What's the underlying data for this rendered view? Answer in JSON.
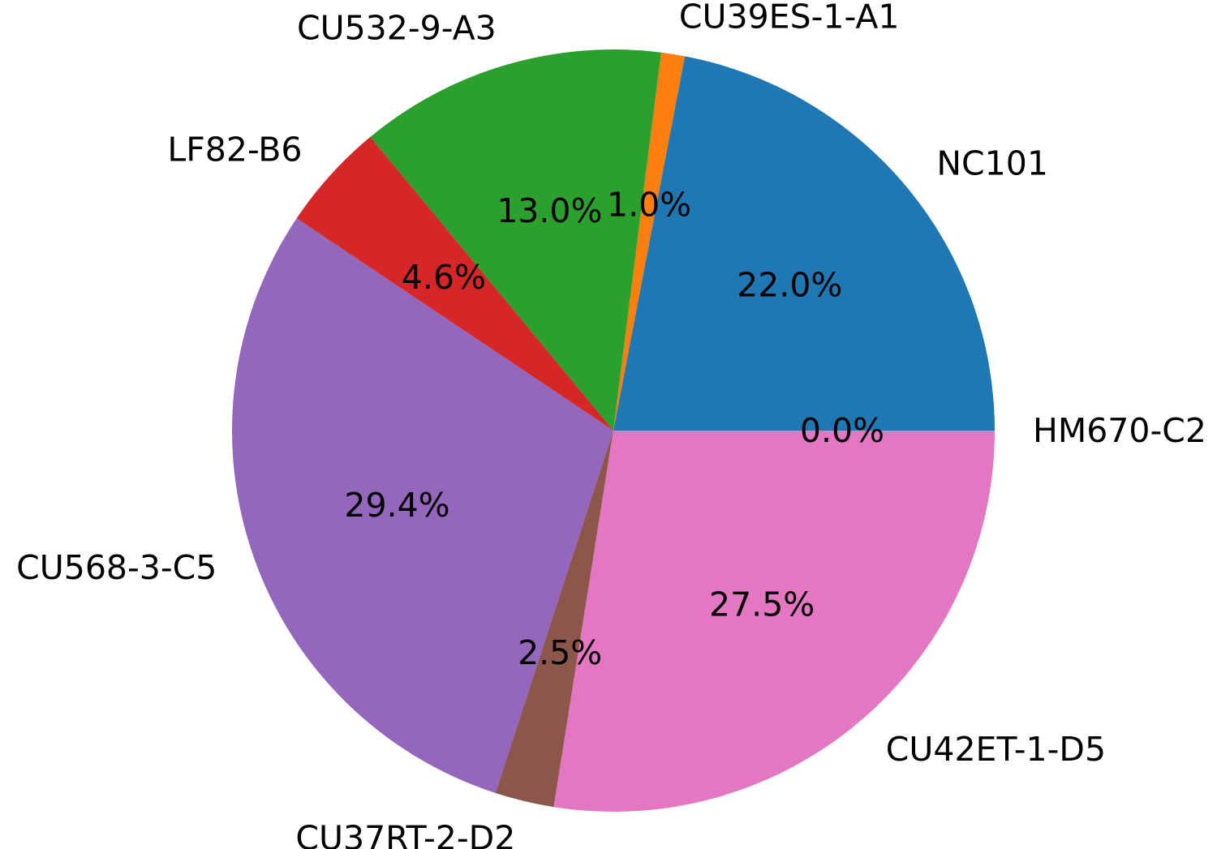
{
  "chart_data": {
    "type": "pie",
    "labels": [
      "NC101",
      "CU39ES-1-A1",
      "CU532-9-A3",
      "LF82-B6",
      "CU568-3-C5",
      "CU37RT-2-D2",
      "CU42ET-1-D5",
      "HM670-C2"
    ],
    "values": [
      22.0,
      1.0,
      13.0,
      4.6,
      29.4,
      2.5,
      27.5,
      0.0
    ],
    "value_labels": [
      "22.0%",
      "1.0%",
      "13.0%",
      "4.6%",
      "29.4%",
      "2.5%",
      "27.5%",
      "0.0%"
    ],
    "colors": [
      "#1f77b4",
      "#ff7f0e",
      "#2ca02c",
      "#d62728",
      "#9467bd",
      "#8c564b",
      "#e377c2",
      "#7f7f7f"
    ],
    "start_angle_deg": 0,
    "direction": "counterclockwise",
    "title": "",
    "legend": "none"
  }
}
